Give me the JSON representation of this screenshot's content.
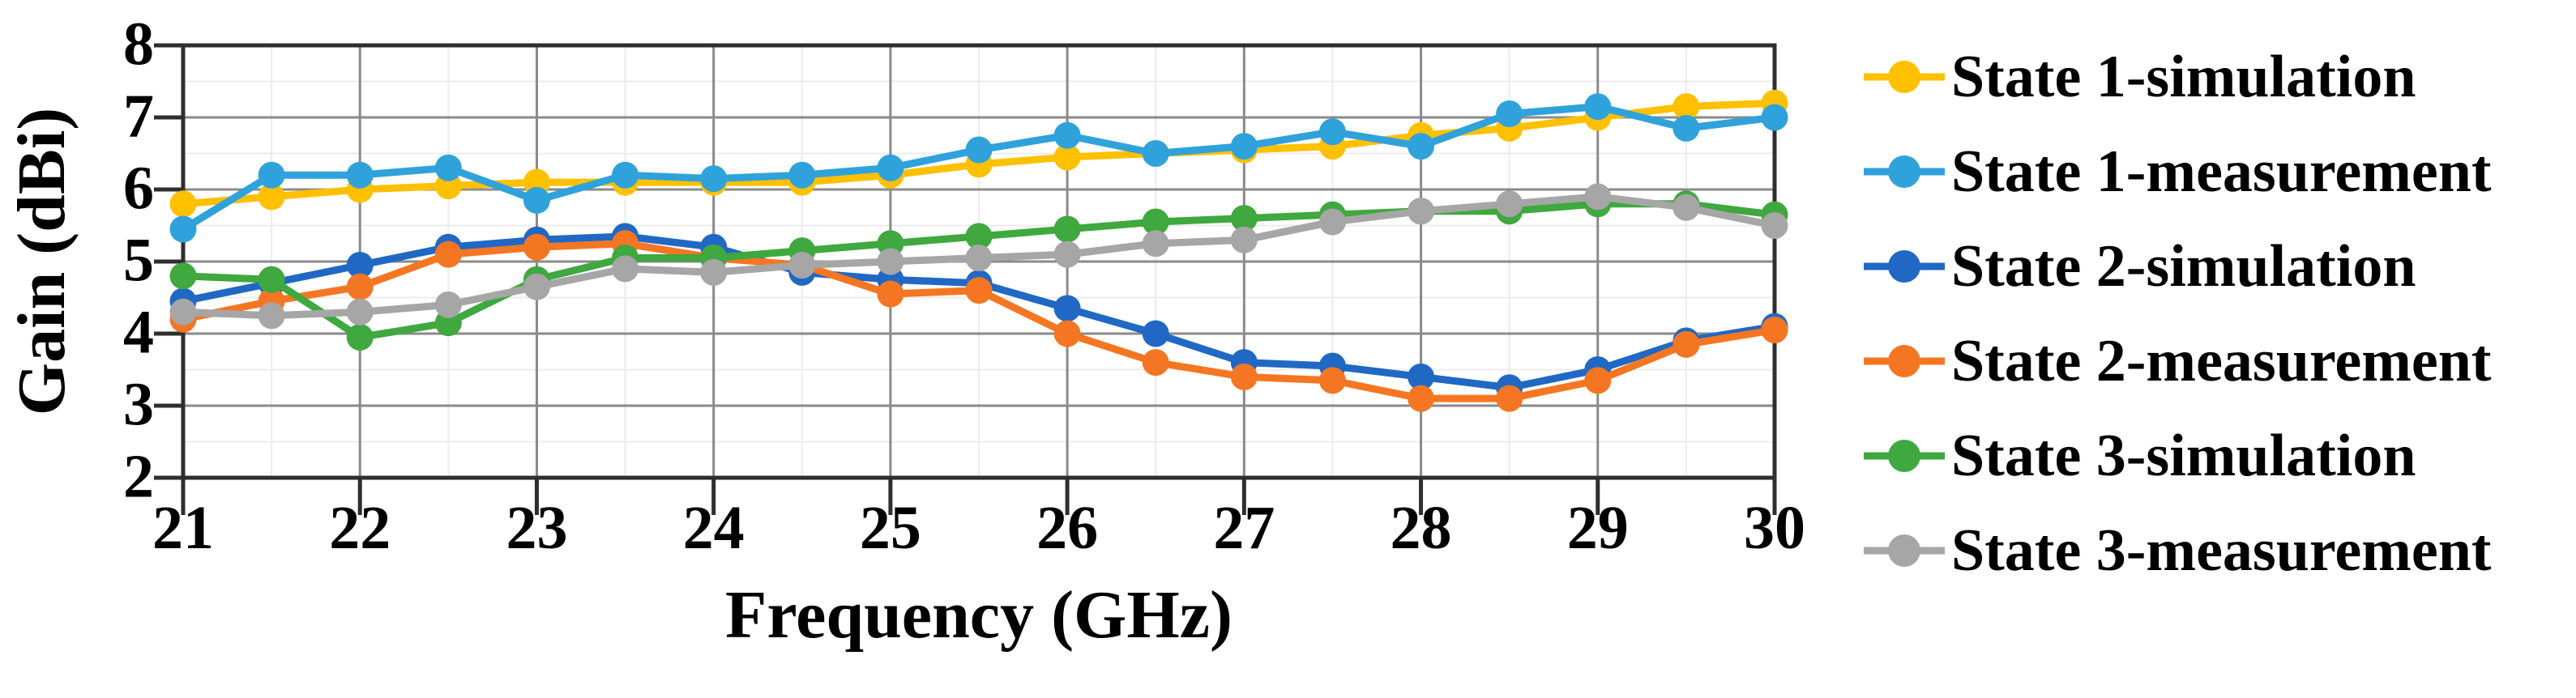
{
  "figure": {
    "background": "#ffffff",
    "text_color": "#000000"
  },
  "axes": {
    "xlabel": "Frequency (GHz)",
    "ylabel": "Gain (dBi)",
    "x_tick_labels": [
      "21",
      "22",
      "23",
      "24",
      "25",
      "26",
      "27",
      "28",
      "29",
      "30"
    ],
    "y_tick_labels": [
      "2",
      "3",
      "4",
      "5",
      "6",
      "7",
      "8"
    ]
  },
  "styles": {
    "axis_color": "#2e2e2e",
    "major_grid_color": "#8a8a8a",
    "minor_grid_color": "#ececec",
    "background": "#ffffff"
  },
  "chart_data": {
    "type": "line",
    "title": "",
    "xlabel": "Frequency (GHz)",
    "ylabel": "Gain (dBi)",
    "xlim": [
      21,
      30
    ],
    "ylim": [
      2,
      8
    ],
    "x_major_tick": 1,
    "y_major_tick": 1,
    "minor_grid_step": 0.5,
    "grid": "major and minor gridlines on",
    "legend_position": "right",
    "marker": "circle",
    "x_ticks": [
      21,
      22,
      23,
      24,
      25,
      26,
      27,
      28,
      29,
      30
    ],
    "y_ticks": [
      2,
      3,
      4,
      5,
      6,
      7,
      8
    ],
    "x": [
      21,
      21.5,
      22,
      22.5,
      23,
      23.5,
      24,
      24.5,
      25,
      25.5,
      26,
      26.5,
      27,
      27.5,
      28,
      28.5,
      29,
      29.5,
      30
    ],
    "series": [
      {
        "name": "State 1-simulation",
        "color": "#FFC000",
        "values": [
          5.8,
          5.9,
          6.0,
          6.05,
          6.1,
          6.1,
          6.1,
          6.1,
          6.2,
          6.35,
          6.45,
          6.5,
          6.55,
          6.6,
          6.75,
          6.85,
          7.0,
          7.15,
          7.2
        ]
      },
      {
        "name": "State 1-measurement",
        "color": "#2FA2DC",
        "values": [
          5.45,
          6.2,
          6.2,
          6.3,
          5.85,
          6.2,
          6.15,
          6.2,
          6.3,
          6.55,
          6.75,
          6.5,
          6.6,
          6.8,
          6.6,
          7.05,
          7.15,
          6.85,
          7.0
        ]
      },
      {
        "name": "State 2-simulation",
        "color": "#2068C4",
        "values": [
          4.45,
          4.7,
          4.95,
          5.2,
          5.3,
          5.35,
          5.2,
          4.85,
          4.75,
          4.7,
          4.35,
          4.0,
          3.6,
          3.55,
          3.4,
          3.25,
          3.5,
          3.9,
          4.1
        ]
      },
      {
        "name": "State 2-measurement",
        "color": "#F57622",
        "values": [
          4.2,
          4.45,
          4.65,
          5.1,
          5.2,
          5.25,
          5.05,
          4.95,
          4.55,
          4.6,
          4.0,
          3.6,
          3.4,
          3.35,
          3.1,
          3.1,
          3.35,
          3.85,
          4.05
        ]
      },
      {
        "name": "State 3-simulation",
        "color": "#3FA83F",
        "values": [
          4.8,
          4.75,
          3.95,
          4.15,
          4.75,
          5.05,
          5.05,
          5.15,
          5.25,
          5.35,
          5.45,
          5.55,
          5.6,
          5.65,
          5.7,
          5.7,
          5.8,
          5.8,
          5.65
        ]
      },
      {
        "name": "State 3-measurement",
        "color": "#A6A6A6",
        "values": [
          4.3,
          4.25,
          4.3,
          4.4,
          4.65,
          4.9,
          4.85,
          4.95,
          5.0,
          5.05,
          5.1,
          5.25,
          5.3,
          5.55,
          5.7,
          5.8,
          5.9,
          5.75,
          5.5
        ]
      }
    ]
  }
}
